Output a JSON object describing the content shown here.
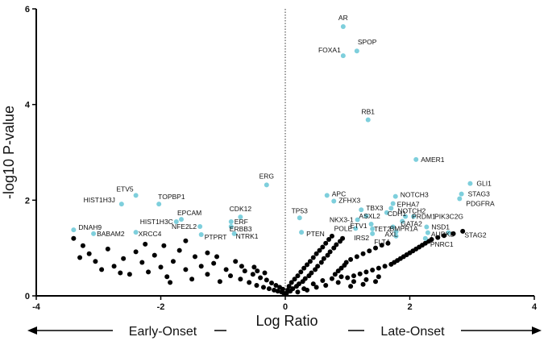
{
  "chart_data": {
    "type": "scatter",
    "title": "",
    "xlabel": "Log Ratio",
    "ylabel": "-log10 P-value",
    "xlim": [
      -4,
      4
    ],
    "ylim": [
      0,
      6
    ],
    "xticks": [
      "-4",
      "-2",
      "0",
      "2",
      "4"
    ],
    "yticks": [
      "0",
      "2",
      "4",
      "6"
    ],
    "reference_line": {
      "x": 0,
      "style": "dotted"
    },
    "direction_labels": {
      "left": "Early-Onset",
      "right": "Late-Onset"
    },
    "colors": {
      "highlighted": "#7ecfdc",
      "background": "#000000"
    },
    "highlighted": [
      {
        "label": "AR",
        "x": 0.93,
        "y": 5.63
      },
      {
        "label": "SPOP",
        "x": 1.15,
        "y": 5.12
      },
      {
        "label": "FOXA1",
        "x": 0.93,
        "y": 5.02
      },
      {
        "label": "RB1",
        "x": 1.33,
        "y": 3.68
      },
      {
        "label": "AMER1",
        "x": 2.1,
        "y": 2.85
      },
      {
        "label": "GLI1",
        "x": 2.97,
        "y": 2.35
      },
      {
        "label": "STAG3",
        "x": 2.83,
        "y": 2.13
      },
      {
        "label": "PDGFRA",
        "x": 2.8,
        "y": 2.03
      },
      {
        "label": "ERG",
        "x": -0.3,
        "y": 2.32
      },
      {
        "label": "ETV5",
        "x": -2.4,
        "y": 2.1
      },
      {
        "label": "HIST1H3J",
        "x": -2.63,
        "y": 1.92
      },
      {
        "label": "TOPBP1",
        "x": -2.03,
        "y": 1.92
      },
      {
        "label": "APC",
        "x": 0.67,
        "y": 2.1
      },
      {
        "label": "ZFHX3",
        "x": 0.78,
        "y": 1.98
      },
      {
        "label": "NOTCH3",
        "x": 1.77,
        "y": 2.08
      },
      {
        "label": "EPHA7",
        "x": 1.73,
        "y": 1.93
      },
      {
        "label": "NOTCH2",
        "x": 1.7,
        "y": 1.83
      },
      {
        "label": "TBX3",
        "x": 1.22,
        "y": 1.8
      },
      {
        "label": "CDH1",
        "x": 1.63,
        "y": 1.74
      },
      {
        "label": "ASXL2",
        "x": 1.3,
        "y": 1.67
      },
      {
        "label": "PRDM1",
        "x": 1.93,
        "y": 1.66
      },
      {
        "label": "PIK3C2G",
        "x": 2.06,
        "y": 1.66
      },
      {
        "label": "GATA2",
        "x": 1.88,
        "y": 1.56
      },
      {
        "label": "NKX3-1",
        "x": 1.16,
        "y": 1.59
      },
      {
        "label": "ETV1",
        "x": 1.38,
        "y": 1.5
      },
      {
        "label": "BMPR1A",
        "x": 1.73,
        "y": 1.44
      },
      {
        "label": "NSD1",
        "x": 2.27,
        "y": 1.44
      },
      {
        "label": "POLE",
        "x": 1.13,
        "y": 1.41
      },
      {
        "label": "TET2",
        "x": 1.4,
        "y": 1.4
      },
      {
        "label": "AXL",
        "x": 1.78,
        "y": 1.34
      },
      {
        "label": "AURKB",
        "x": 2.29,
        "y": 1.32
      },
      {
        "label": "STAG2",
        "x": 2.62,
        "y": 1.32
      },
      {
        "label": "IRS2",
        "x": 1.4,
        "y": 1.3
      },
      {
        "label": "FLT4",
        "x": 1.78,
        "y": 1.25
      },
      {
        "label": "PNRC1",
        "x": 2.25,
        "y": 1.2
      },
      {
        "label": "TP53",
        "x": 0.23,
        "y": 1.63
      },
      {
        "label": "PTEN",
        "x": 0.26,
        "y": 1.33
      },
      {
        "label": "CDK12",
        "x": -0.72,
        "y": 1.65
      },
      {
        "label": "EPCAM",
        "x": -1.67,
        "y": 1.6
      },
      {
        "label": "HIST1H3C",
        "x": -1.75,
        "y": 1.55
      },
      {
        "label": "ERF",
        "x": -0.87,
        "y": 1.55
      },
      {
        "label": "NFE2L2",
        "x": -1.37,
        "y": 1.45
      },
      {
        "label": "ERBB3",
        "x": -0.87,
        "y": 1.45
      },
      {
        "label": "DNAH9",
        "x": -3.4,
        "y": 1.38
      },
      {
        "label": "XRCC4",
        "x": -2.4,
        "y": 1.33
      },
      {
        "label": "BABAM2",
        "x": -3.08,
        "y": 1.3
      },
      {
        "label": "PTPRT",
        "x": -1.35,
        "y": 1.28
      },
      {
        "label": "NTRK1",
        "x": -0.82,
        "y": 1.3
      }
    ],
    "background": [
      [
        -3.4,
        1.2
      ],
      [
        -3.25,
        1.05
      ],
      [
        -3.15,
        0.88
      ],
      [
        -3.05,
        0.72
      ],
      [
        -2.95,
        0.55
      ],
      [
        -2.85,
        0.98
      ],
      [
        -2.75,
        0.62
      ],
      [
        -2.6,
        0.78
      ],
      [
        -2.5,
        0.45
      ],
      [
        -2.4,
        0.92
      ],
      [
        -2.3,
        0.7
      ],
      [
        -2.2,
        0.5
      ],
      [
        -2.1,
        0.85
      ],
      [
        -2.0,
        0.6
      ],
      [
        -1.9,
        0.4
      ],
      [
        -1.8,
        0.72
      ],
      [
        -1.7,
        0.95
      ],
      [
        -1.6,
        0.55
      ],
      [
        -1.5,
        0.35
      ],
      [
        -1.45,
        0.82
      ],
      [
        -1.35,
        0.62
      ],
      [
        -1.25,
        0.45
      ],
      [
        -1.15,
        0.68
      ],
      [
        -1.05,
        0.3
      ],
      [
        -0.95,
        0.55
      ],
      [
        -0.88,
        0.42
      ],
      [
        -0.8,
        0.72
      ],
      [
        -0.72,
        0.35
      ],
      [
        -0.65,
        0.52
      ],
      [
        -0.58,
        0.28
      ],
      [
        -0.52,
        0.45
      ],
      [
        -0.46,
        0.22
      ],
      [
        -0.4,
        0.38
      ],
      [
        -0.35,
        0.18
      ],
      [
        -0.3,
        0.33
      ],
      [
        -0.26,
        0.15
      ],
      [
        -0.22,
        0.27
      ],
      [
        -0.18,
        0.12
      ],
      [
        -0.15,
        0.22
      ],
      [
        -0.12,
        0.1
      ],
      [
        -0.09,
        0.18
      ],
      [
        -0.06,
        0.08
      ],
      [
        -0.04,
        0.14
      ],
      [
        -0.02,
        0.05
      ],
      [
        -2.25,
        1.08
      ],
      [
        -1.95,
        1.05
      ],
      [
        -1.6,
        1.15
      ],
      [
        -1.25,
        0.9
      ],
      [
        -2.65,
        0.48
      ],
      [
        -3.3,
        0.8
      ],
      [
        -1.85,
        0.28
      ],
      [
        -1.1,
        0.82
      ],
      [
        -0.7,
        0.62
      ],
      [
        -0.5,
        0.6
      ],
      [
        -0.45,
        0.52
      ],
      [
        -0.33,
        0.48
      ],
      [
        0.02,
        0.05
      ],
      [
        0.04,
        0.12
      ],
      [
        0.06,
        0.2
      ],
      [
        0.08,
        0.1
      ],
      [
        0.1,
        0.28
      ],
      [
        0.12,
        0.15
      ],
      [
        0.15,
        0.35
      ],
      [
        0.18,
        0.2
      ],
      [
        0.2,
        0.42
      ],
      [
        0.22,
        0.25
      ],
      [
        0.25,
        0.5
      ],
      [
        0.28,
        0.3
      ],
      [
        0.3,
        0.58
      ],
      [
        0.32,
        0.36
      ],
      [
        0.35,
        0.65
      ],
      [
        0.38,
        0.42
      ],
      [
        0.4,
        0.72
      ],
      [
        0.42,
        0.48
      ],
      [
        0.45,
        0.8
      ],
      [
        0.48,
        0.55
      ],
      [
        0.5,
        0.88
      ],
      [
        0.52,
        0.62
      ],
      [
        0.55,
        0.95
      ],
      [
        0.58,
        0.7
      ],
      [
        0.6,
        1.02
      ],
      [
        0.62,
        0.78
      ],
      [
        0.65,
        1.1
      ],
      [
        0.68,
        0.85
      ],
      [
        0.7,
        1.18
      ],
      [
        0.72,
        0.92
      ],
      [
        0.75,
        1.25
      ],
      [
        0.78,
        1.0
      ],
      [
        0.8,
        0.45
      ],
      [
        0.82,
        1.07
      ],
      [
        0.85,
        0.52
      ],
      [
        0.88,
        1.14
      ],
      [
        0.9,
        0.58
      ],
      [
        0.92,
        1.2
      ],
      [
        0.95,
        0.64
      ],
      [
        0.98,
        0.7
      ],
      [
        1.0,
        0.38
      ],
      [
        1.05,
        0.76
      ],
      [
        1.1,
        0.42
      ],
      [
        1.15,
        0.82
      ],
      [
        1.2,
        0.46
      ],
      [
        1.25,
        0.88
      ],
      [
        1.3,
        0.5
      ],
      [
        1.35,
        0.94
      ],
      [
        1.4,
        0.54
      ],
      [
        1.45,
        1.0
      ],
      [
        1.5,
        0.58
      ],
      [
        1.55,
        1.06
      ],
      [
        1.6,
        0.62
      ],
      [
        1.65,
        1.1
      ],
      [
        1.7,
        0.66
      ],
      [
        1.75,
        0.7
      ],
      [
        1.8,
        0.74
      ],
      [
        1.85,
        0.78
      ],
      [
        1.9,
        0.82
      ],
      [
        1.95,
        0.86
      ],
      [
        2.0,
        0.9
      ],
      [
        2.05,
        0.94
      ],
      [
        2.1,
        0.98
      ],
      [
        2.15,
        1.02
      ],
      [
        2.2,
        1.06
      ],
      [
        2.25,
        1.1
      ],
      [
        2.3,
        1.14
      ],
      [
        2.35,
        1.18
      ],
      [
        2.45,
        1.22
      ],
      [
        2.55,
        1.26
      ],
      [
        2.7,
        1.3
      ],
      [
        2.85,
        1.35
      ],
      [
        0.3,
        0.15
      ],
      [
        0.45,
        0.25
      ],
      [
        0.6,
        0.32
      ],
      [
        0.75,
        0.36
      ],
      [
        0.9,
        0.4
      ],
      [
        1.1,
        0.3
      ],
      [
        1.3,
        0.34
      ],
      [
        1.5,
        0.4
      ],
      [
        0.2,
        0.08
      ],
      [
        0.35,
        0.12
      ],
      [
        0.5,
        0.18
      ],
      [
        0.65,
        0.22
      ],
      [
        0.85,
        0.28
      ],
      [
        1.05,
        0.2
      ],
      [
        1.25,
        0.24
      ],
      [
        1.45,
        0.3
      ]
    ]
  }
}
